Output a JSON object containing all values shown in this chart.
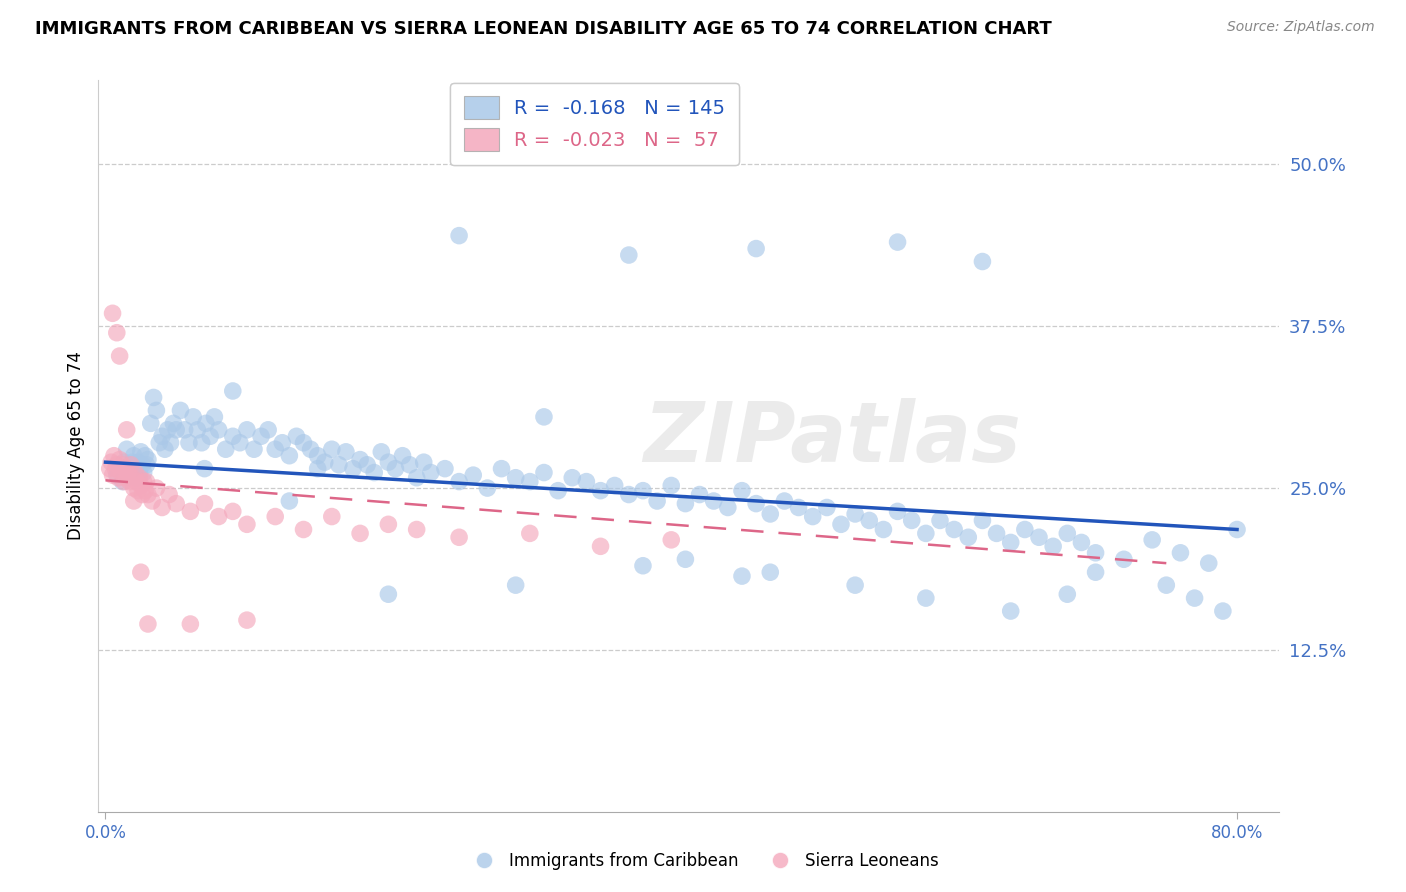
{
  "title": "IMMIGRANTS FROM CARIBBEAN VS SIERRA LEONEAN DISABILITY AGE 65 TO 74 CORRELATION CHART",
  "source": "Source: ZipAtlas.com",
  "ylabel": "Disability Age 65 to 74",
  "ytick_vals": [
    0.125,
    0.25,
    0.375,
    0.5
  ],
  "ytick_labels": [
    "12.5%",
    "25.0%",
    "37.5%",
    "50.0%"
  ],
  "xtick_vals": [
    0.0,
    0.8
  ],
  "xtick_labels": [
    "0.0%",
    "80.0%"
  ],
  "xlim": [
    -0.005,
    0.83
  ],
  "ylim": [
    0.0,
    0.565
  ],
  "blue_color": "#aac8e8",
  "pink_color": "#f4a8bc",
  "blue_line_color": "#2255bb",
  "pink_line_color": "#dd6688",
  "blue_line_start_x": 0.0,
  "blue_line_start_y": 0.27,
  "blue_line_end_x": 0.8,
  "blue_line_end_y": 0.218,
  "pink_line_start_x": 0.0,
  "pink_line_start_y": 0.256,
  "pink_line_end_x": 0.75,
  "pink_line_end_y": 0.192,
  "watermark": "ZIPatlas",
  "legend_label_blue": "Immigrants from Caribbean",
  "legend_label_pink": "Sierra Leoneans",
  "blue_R": -0.168,
  "blue_N": 145,
  "pink_R": -0.023,
  "pink_N": 57,
  "tick_color_y": "#4472c4",
  "tick_color_x": "#4472c4",
  "blue_x": [
    0.008,
    0.01,
    0.012,
    0.013,
    0.015,
    0.016,
    0.017,
    0.018,
    0.019,
    0.02,
    0.021,
    0.022,
    0.023,
    0.024,
    0.025,
    0.026,
    0.027,
    0.028,
    0.029,
    0.03,
    0.032,
    0.034,
    0.036,
    0.038,
    0.04,
    0.042,
    0.044,
    0.046,
    0.048,
    0.05,
    0.053,
    0.056,
    0.059,
    0.062,
    0.065,
    0.068,
    0.071,
    0.074,
    0.077,
    0.08,
    0.085,
    0.09,
    0.095,
    0.1,
    0.105,
    0.11,
    0.115,
    0.12,
    0.125,
    0.13,
    0.135,
    0.14,
    0.145,
    0.15,
    0.155,
    0.16,
    0.165,
    0.17,
    0.175,
    0.18,
    0.185,
    0.19,
    0.195,
    0.2,
    0.205,
    0.21,
    0.215,
    0.22,
    0.225,
    0.23,
    0.24,
    0.25,
    0.26,
    0.27,
    0.28,
    0.29,
    0.3,
    0.31,
    0.32,
    0.33,
    0.34,
    0.35,
    0.36,
    0.37,
    0.38,
    0.39,
    0.4,
    0.41,
    0.42,
    0.43,
    0.44,
    0.45,
    0.46,
    0.47,
    0.48,
    0.49,
    0.5,
    0.51,
    0.52,
    0.53,
    0.54,
    0.55,
    0.56,
    0.57,
    0.58,
    0.59,
    0.6,
    0.61,
    0.62,
    0.63,
    0.64,
    0.65,
    0.66,
    0.67,
    0.68,
    0.69,
    0.7,
    0.72,
    0.74,
    0.76,
    0.78,
    0.8,
    0.37,
    0.56,
    0.62,
    0.46,
    0.25,
    0.31,
    0.15,
    0.09,
    0.41,
    0.47,
    0.53,
    0.58,
    0.64,
    0.7,
    0.75,
    0.77,
    0.79,
    0.68,
    0.45,
    0.38,
    0.29,
    0.2,
    0.13,
    0.07
  ],
  "blue_y": [
    0.26,
    0.265,
    0.255,
    0.27,
    0.28,
    0.265,
    0.26,
    0.265,
    0.27,
    0.275,
    0.265,
    0.258,
    0.27,
    0.262,
    0.278,
    0.268,
    0.262,
    0.275,
    0.268,
    0.272,
    0.3,
    0.32,
    0.31,
    0.285,
    0.29,
    0.28,
    0.295,
    0.285,
    0.3,
    0.295,
    0.31,
    0.295,
    0.285,
    0.305,
    0.295,
    0.285,
    0.3,
    0.29,
    0.305,
    0.295,
    0.28,
    0.29,
    0.285,
    0.295,
    0.28,
    0.29,
    0.295,
    0.28,
    0.285,
    0.275,
    0.29,
    0.285,
    0.28,
    0.275,
    0.27,
    0.28,
    0.268,
    0.278,
    0.265,
    0.272,
    0.268,
    0.262,
    0.278,
    0.27,
    0.265,
    0.275,
    0.268,
    0.258,
    0.27,
    0.262,
    0.265,
    0.255,
    0.26,
    0.25,
    0.265,
    0.258,
    0.255,
    0.262,
    0.248,
    0.258,
    0.255,
    0.248,
    0.252,
    0.245,
    0.248,
    0.24,
    0.252,
    0.238,
    0.245,
    0.24,
    0.235,
    0.248,
    0.238,
    0.23,
    0.24,
    0.235,
    0.228,
    0.235,
    0.222,
    0.23,
    0.225,
    0.218,
    0.232,
    0.225,
    0.215,
    0.225,
    0.218,
    0.212,
    0.225,
    0.215,
    0.208,
    0.218,
    0.212,
    0.205,
    0.215,
    0.208,
    0.2,
    0.195,
    0.21,
    0.2,
    0.192,
    0.218,
    0.43,
    0.44,
    0.425,
    0.435,
    0.445,
    0.305,
    0.265,
    0.325,
    0.195,
    0.185,
    0.175,
    0.165,
    0.155,
    0.185,
    0.175,
    0.165,
    0.155,
    0.168,
    0.182,
    0.19,
    0.175,
    0.168,
    0.24,
    0.265
  ],
  "pink_x": [
    0.003,
    0.004,
    0.005,
    0.006,
    0.007,
    0.008,
    0.009,
    0.01,
    0.011,
    0.012,
    0.013,
    0.014,
    0.015,
    0.016,
    0.017,
    0.018,
    0.019,
    0.02,
    0.021,
    0.022,
    0.023,
    0.024,
    0.025,
    0.026,
    0.027,
    0.028,
    0.029,
    0.03,
    0.033,
    0.036,
    0.04,
    0.045,
    0.05,
    0.06,
    0.07,
    0.08,
    0.09,
    0.1,
    0.12,
    0.14,
    0.16,
    0.18,
    0.2,
    0.22,
    0.25,
    0.3,
    0.35,
    0.4,
    0.005,
    0.008,
    0.01,
    0.015,
    0.02,
    0.025,
    0.03,
    0.06,
    0.1
  ],
  "pink_y": [
    0.265,
    0.27,
    0.26,
    0.275,
    0.265,
    0.268,
    0.258,
    0.272,
    0.262,
    0.268,
    0.255,
    0.265,
    0.258,
    0.262,
    0.255,
    0.268,
    0.258,
    0.25,
    0.262,
    0.255,
    0.248,
    0.258,
    0.252,
    0.245,
    0.255,
    0.248,
    0.255,
    0.245,
    0.24,
    0.25,
    0.235,
    0.245,
    0.238,
    0.232,
    0.238,
    0.228,
    0.232,
    0.222,
    0.228,
    0.218,
    0.228,
    0.215,
    0.222,
    0.218,
    0.212,
    0.215,
    0.205,
    0.21,
    0.385,
    0.37,
    0.352,
    0.295,
    0.24,
    0.185,
    0.145,
    0.145,
    0.148
  ]
}
